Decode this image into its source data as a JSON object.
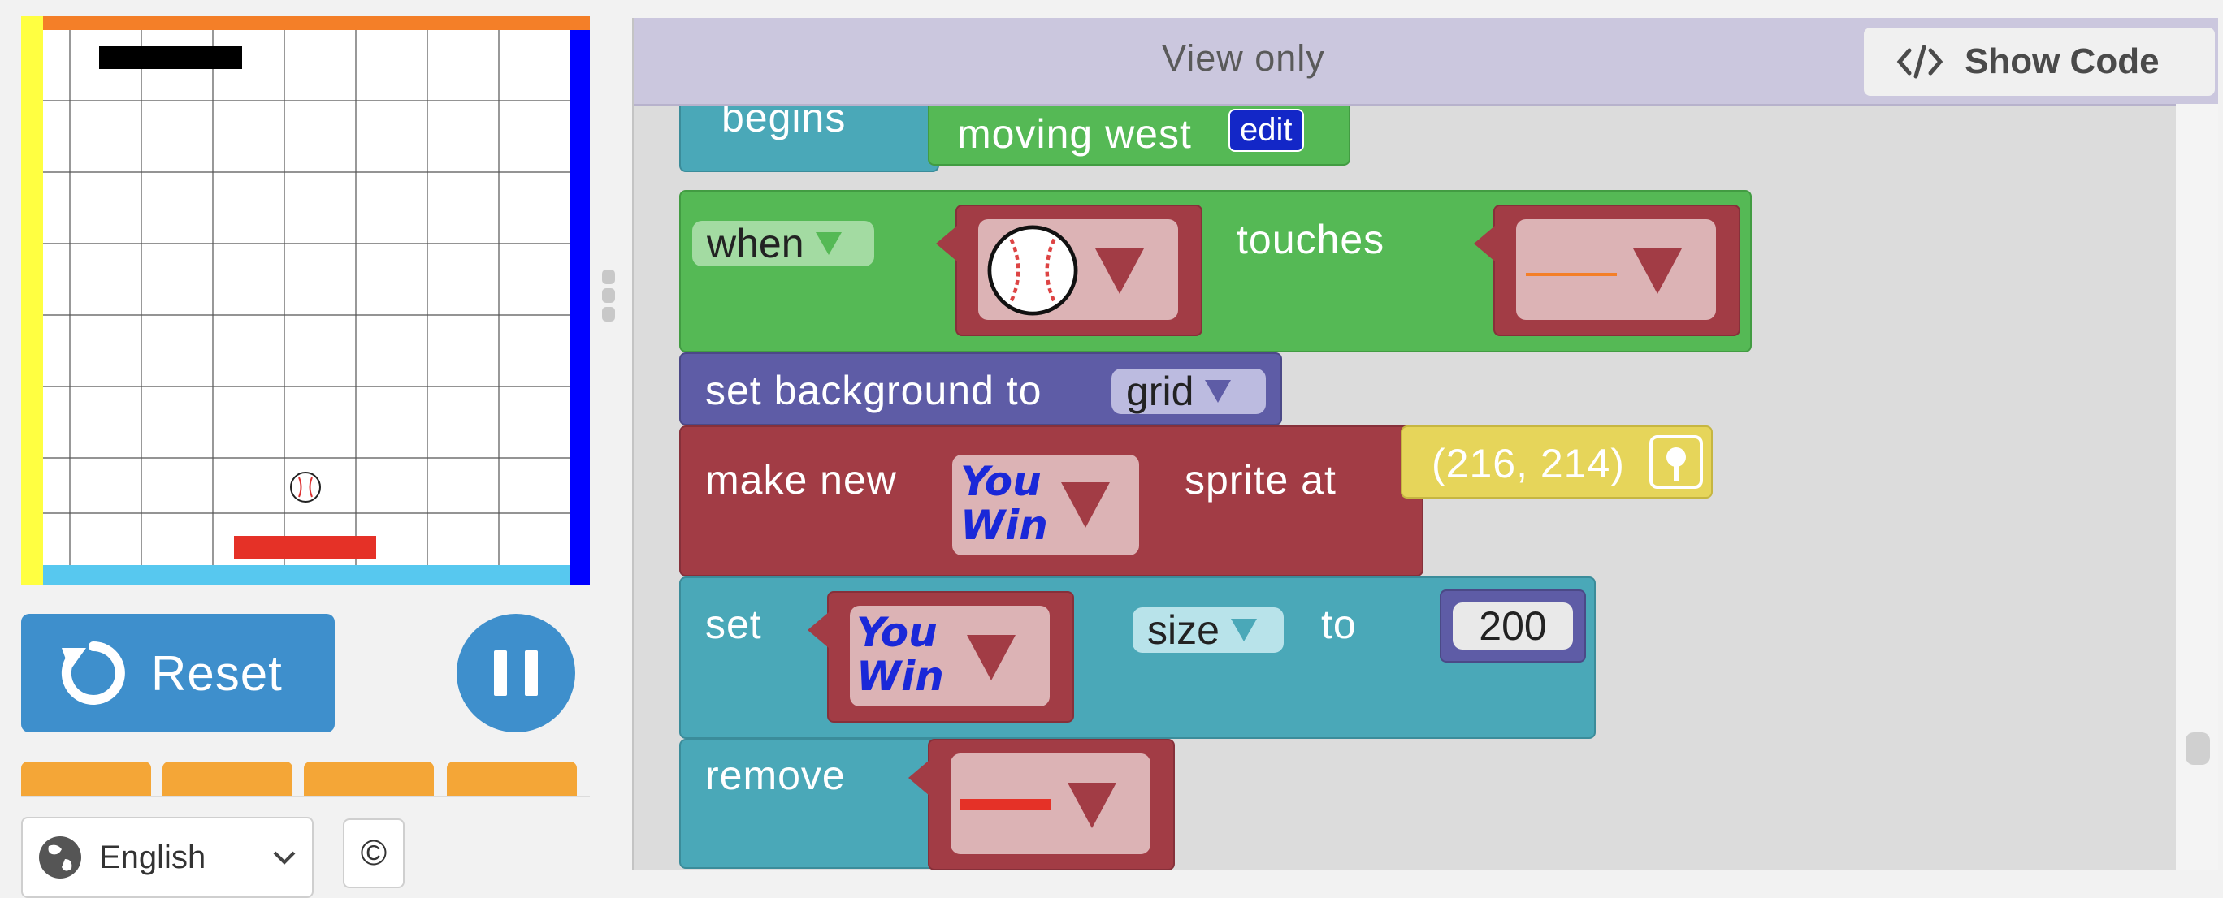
{
  "controls": {
    "reset_label": "Reset",
    "language_label": "English",
    "copyright_symbol": "©"
  },
  "header": {
    "view_only_label": "View only",
    "show_code_label": "Show Code"
  },
  "blocks": {
    "begins_label": "begins",
    "moving_west_label": "moving west",
    "edit_label": "edit",
    "when_label": "when",
    "touches_label": "touches",
    "set_background_label": "set background to",
    "grid_label": "grid",
    "make_new_label": "make new",
    "sprite_at_label": "sprite at",
    "coordinate_label": "(216, 214)",
    "you_win_line1": "You",
    "you_win_line2": "Win",
    "set_label": "set",
    "size_label": "size",
    "to_label": "to",
    "size_value": "200",
    "remove_label": "remove"
  },
  "colors": {
    "wall_top": "#f47f28",
    "wall_left": "#ffff41",
    "wall_right": "#0000ff",
    "wall_bottom": "#57c8ef",
    "paddle": "#e53127",
    "button_blue": "#3e8fcc",
    "tab_orange": "#f4a637",
    "block_teal": "#4aa8b8",
    "block_green": "#55b955",
    "block_purple": "#5e5ca6",
    "block_red": "#a23c45",
    "block_yellow": "#e6d55a"
  },
  "icons": [
    "baseball-icon",
    "reset-icon",
    "pause-icon",
    "globe-icon",
    "chevron-down-icon",
    "code-icon",
    "location-pin-icon"
  ]
}
